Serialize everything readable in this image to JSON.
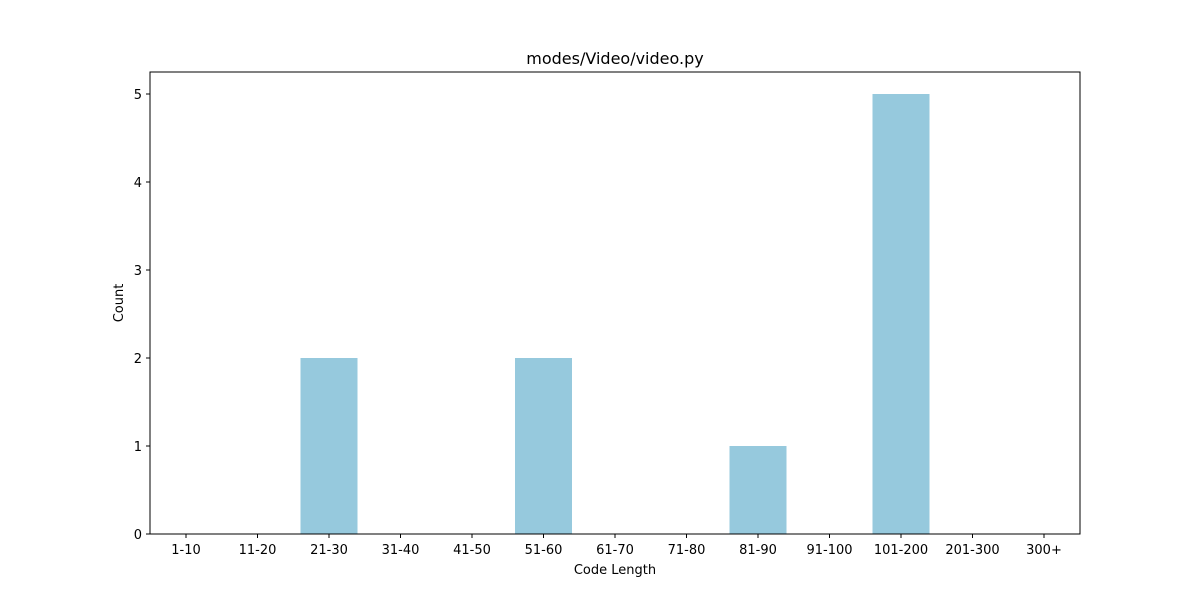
{
  "chart_data": {
    "type": "bar",
    "title": "modes/Video/video.py",
    "xlabel": "Code Length",
    "ylabel": "Count",
    "categories": [
      "1-10",
      "11-20",
      "21-30",
      "31-40",
      "41-50",
      "51-60",
      "61-70",
      "71-80",
      "81-90",
      "91-100",
      "101-200",
      "201-300",
      "300+"
    ],
    "values": [
      0,
      0,
      2,
      0,
      0,
      2,
      0,
      0,
      1,
      0,
      5,
      0,
      0
    ],
    "ylim": [
      0,
      5.25
    ],
    "yticks": [
      0,
      1,
      2,
      3,
      4,
      5
    ],
    "bar_color": "#96c9dd",
    "grid": false,
    "legend": "none"
  }
}
